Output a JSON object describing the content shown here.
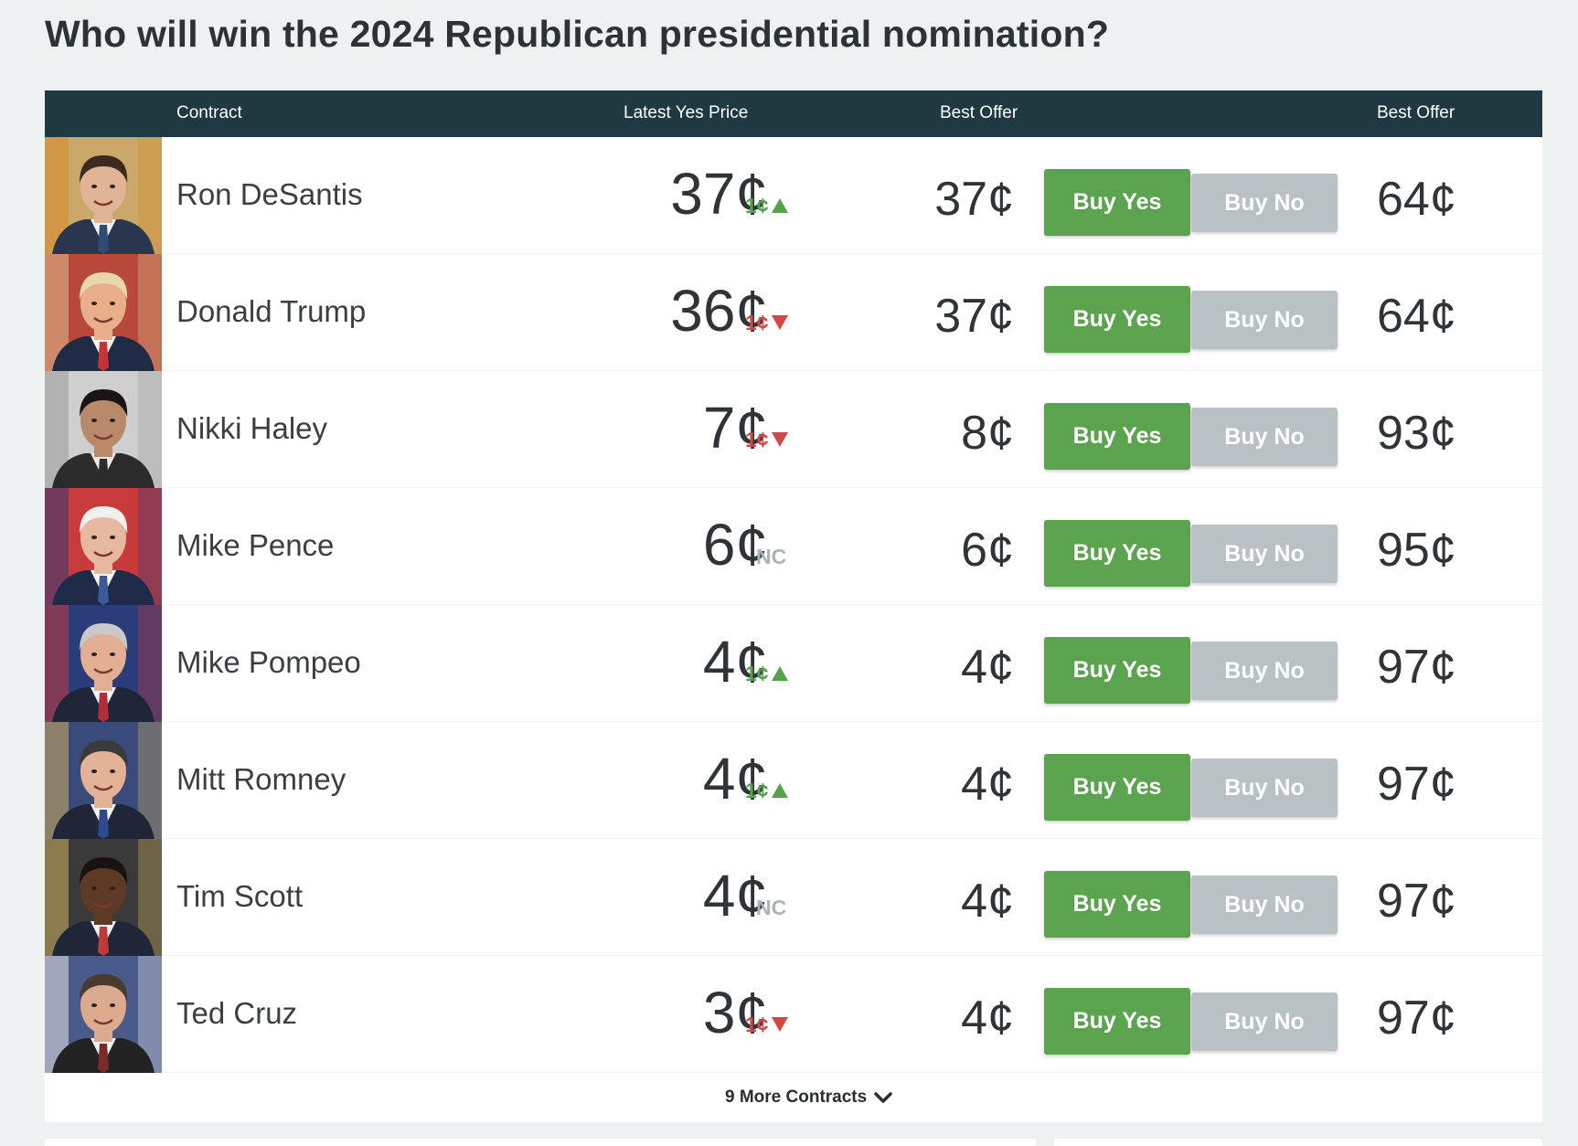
{
  "title": "Who will win the 2024 Republican presidential nomination?",
  "header": {
    "contract": "Contract",
    "latest_yes_price": "Latest Yes Price",
    "best_offer_yes": "Best Offer",
    "best_offer_no": "Best Offer"
  },
  "contracts": [
    {
      "name": "Ron DeSantis",
      "latest": "37¢",
      "change": "1¢",
      "direction": "up",
      "offer_yes": "37¢",
      "buy_yes": "Buy Yes",
      "buy_no": "Buy No",
      "offer_no": "64¢"
    },
    {
      "name": "Donald Trump",
      "latest": "36¢",
      "change": "1¢",
      "direction": "down",
      "offer_yes": "37¢",
      "buy_yes": "Buy Yes",
      "buy_no": "Buy No",
      "offer_no": "64¢"
    },
    {
      "name": "Nikki Haley",
      "latest": "7¢",
      "change": "1¢",
      "direction": "down",
      "offer_yes": "8¢",
      "buy_yes": "Buy Yes",
      "buy_no": "Buy No",
      "offer_no": "93¢"
    },
    {
      "name": "Mike Pence",
      "latest": "6¢",
      "change": "NC",
      "direction": "none",
      "offer_yes": "6¢",
      "buy_yes": "Buy Yes",
      "buy_no": "Buy No",
      "offer_no": "95¢"
    },
    {
      "name": "Mike Pompeo",
      "latest": "4¢",
      "change": "1¢",
      "direction": "up",
      "offer_yes": "4¢",
      "buy_yes": "Buy Yes",
      "buy_no": "Buy No",
      "offer_no": "97¢"
    },
    {
      "name": "Mitt Romney",
      "latest": "4¢",
      "change": "1¢",
      "direction": "up",
      "offer_yes": "4¢",
      "buy_yes": "Buy Yes",
      "buy_no": "Buy No",
      "offer_no": "97¢"
    },
    {
      "name": "Tim Scott",
      "latest": "4¢",
      "change": "NC",
      "direction": "none",
      "offer_yes": "4¢",
      "buy_yes": "Buy Yes",
      "buy_no": "Buy No",
      "offer_no": "97¢"
    },
    {
      "name": "Ted Cruz",
      "latest": "3¢",
      "change": "1¢",
      "direction": "down",
      "offer_yes": "4¢",
      "buy_yes": "Buy Yes",
      "buy_no": "Buy No",
      "offer_no": "97¢"
    }
  ],
  "more_contracts": "9 More Contracts",
  "icons": {
    "expand": "chevron-down-icon",
    "up": "arrow-up-icon",
    "down": "arrow-down-icon"
  },
  "colors": {
    "header_bg": "#1e3a40",
    "buy_yes": "#5ba34f",
    "buy_no": "#b8c2c4",
    "up": "#56a14c",
    "down": "#cf4a47",
    "nc": "#aab3b6"
  },
  "avatar_palettes": [
    {
      "bg": "#c9a86a",
      "accent": "#d88a2a",
      "skin": "#e0b494",
      "hair": "#3b2a20",
      "suit": "#2a3550",
      "shirt": "#f2f2f2",
      "tie": "#314a78"
    },
    {
      "bg": "#b7483a",
      "accent": "#e0c090",
      "skin": "#e8b08a",
      "hair": "#e8d7a8",
      "suit": "#1f2a44",
      "shirt": "#f4f4f4",
      "tie": "#c8333a"
    },
    {
      "bg": "#cfcfcf",
      "accent": "#9a9a9a",
      "skin": "#b88a6a",
      "hair": "#1a1512",
      "suit": "#2b2b2b",
      "shirt": "#e8e8e8",
      "tie": "#2b2b2b"
    },
    {
      "bg": "#c93a3a",
      "accent": "#2a3d7a",
      "skin": "#e6b8a0",
      "hair": "#f0f0f0",
      "suit": "#1e2a48",
      "shirt": "#f4f4f4",
      "tie": "#3a5a9a"
    },
    {
      "bg": "#2a3d7a",
      "accent": "#c93a3a",
      "skin": "#e3ae94",
      "hair": "#c9c9c9",
      "suit": "#1e2638",
      "shirt": "#f4f4f4",
      "tie": "#b02e3a"
    },
    {
      "bg": "#3a4a7a",
      "accent": "#d0b060",
      "skin": "#e3b296",
      "hair": "#3a3a3a",
      "suit": "#1e2638",
      "shirt": "#f4f4f4",
      "tie": "#2f4a8a"
    },
    {
      "bg": "#3a3a3a",
      "accent": "#d0b060",
      "skin": "#5e3a26",
      "hair": "#1a1210",
      "suit": "#1e2638",
      "shirt": "#f4f4f4",
      "tie": "#c03a3a"
    },
    {
      "bg": "#4a5a8a",
      "accent": "#e8e8e8",
      "skin": "#dcaa8e",
      "hair": "#4a3a30",
      "suit": "#222222",
      "shirt": "#f2f2f2",
      "tie": "#7a2a2a"
    }
  ]
}
